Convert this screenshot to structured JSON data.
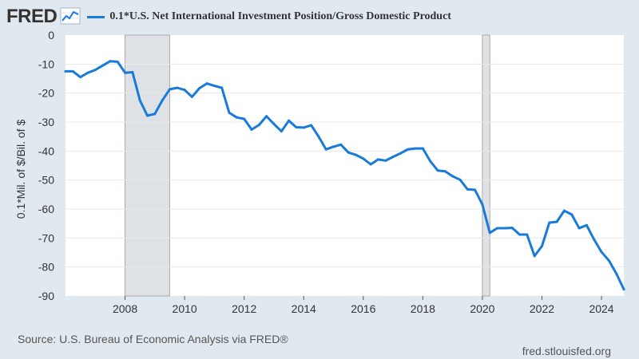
{
  "header": {
    "logo": "FRED",
    "logo_icon": "line-chart-icon"
  },
  "footer": {
    "source": "Source: U.S. Bureau of Economic Analysis via FRED®",
    "site": "fred.stlouisfed.org"
  },
  "colors": {
    "series": "#1a7ad9",
    "background": "#e1e9f0",
    "plot": "#ffffff",
    "recession": "#dee2e6",
    "grid": "#e8e8e8"
  },
  "chart_data": {
    "type": "line",
    "title": "",
    "ylabel": "0.1*Mil. of $/Bil. of $",
    "xlabel": "",
    "ylim": [
      -90,
      0
    ],
    "xlim": [
      2006.0,
      2024.75
    ],
    "grid": "horizontal",
    "legend_position": "top",
    "x_ticks": [
      "2008",
      "2010",
      "2012",
      "2014",
      "2016",
      "2018",
      "2020",
      "2022",
      "2024"
    ],
    "y_ticks": [
      "0",
      "-10",
      "-20",
      "-30",
      "-40",
      "-50",
      "-60",
      "-70",
      "-80",
      "-90"
    ],
    "recessions": [
      [
        2008.0,
        2009.5
      ],
      [
        2020.0,
        2020.25
      ]
    ],
    "series": [
      {
        "name": "0.1*U.S. Net International Investment Position/Gross Domestic Product",
        "color": "#1a7ad9",
        "x": [
          2006.0,
          2006.25,
          2006.5,
          2006.75,
          2007.0,
          2007.25,
          2007.5,
          2007.75,
          2008.0,
          2008.25,
          2008.5,
          2008.75,
          2009.0,
          2009.25,
          2009.5,
          2009.75,
          2010.0,
          2010.25,
          2010.5,
          2010.75,
          2011.0,
          2011.25,
          2011.5,
          2011.75,
          2012.0,
          2012.25,
          2012.5,
          2012.75,
          2013.0,
          2013.25,
          2013.5,
          2013.75,
          2014.0,
          2014.25,
          2014.5,
          2014.75,
          2015.0,
          2015.25,
          2015.5,
          2015.75,
          2016.0,
          2016.25,
          2016.5,
          2016.75,
          2017.0,
          2017.25,
          2017.5,
          2017.75,
          2018.0,
          2018.25,
          2018.5,
          2018.75,
          2019.0,
          2019.25,
          2019.5,
          2019.75,
          2020.0,
          2020.25,
          2020.5,
          2020.75,
          2021.0,
          2021.25,
          2021.5,
          2021.75,
          2022.0,
          2022.25,
          2022.5,
          2022.75,
          2023.0,
          2023.25,
          2023.5,
          2023.75,
          2024.0,
          2024.25,
          2024.5,
          2024.75
        ],
        "y": [
          -12.5,
          -12.5,
          -14.5,
          -13,
          -12,
          -10.5,
          -9,
          -9.2,
          -13,
          -12.8,
          -22.5,
          -27.8,
          -27.2,
          -22.5,
          -18.7,
          -18.2,
          -18.9,
          -21.3,
          -18.3,
          -16.7,
          -17.5,
          -18.2,
          -26.8,
          -28.4,
          -28.9,
          -32.6,
          -31,
          -28,
          -30.7,
          -33.2,
          -29.5,
          -31.8,
          -31.9,
          -31.1,
          -35,
          -39.4,
          -38.5,
          -37.8,
          -40.5,
          -41.3,
          -42.6,
          -44.6,
          -42.9,
          -43.3,
          -42,
          -40.8,
          -39.4,
          -39.1,
          -39.1,
          -43.5,
          -46.7,
          -47,
          -48.7,
          -49.9,
          -53.2,
          -53.4,
          -58.4,
          -68.2,
          -66.6,
          -66.6,
          -66.5,
          -68.8,
          -68.8,
          -76.2,
          -72.8,
          -64.7,
          -64.4,
          -60.6,
          -61.9,
          -66.6,
          -65.6,
          -70.5,
          -74.8,
          -77.8,
          -82.3,
          -87.7
        ]
      }
    ]
  }
}
